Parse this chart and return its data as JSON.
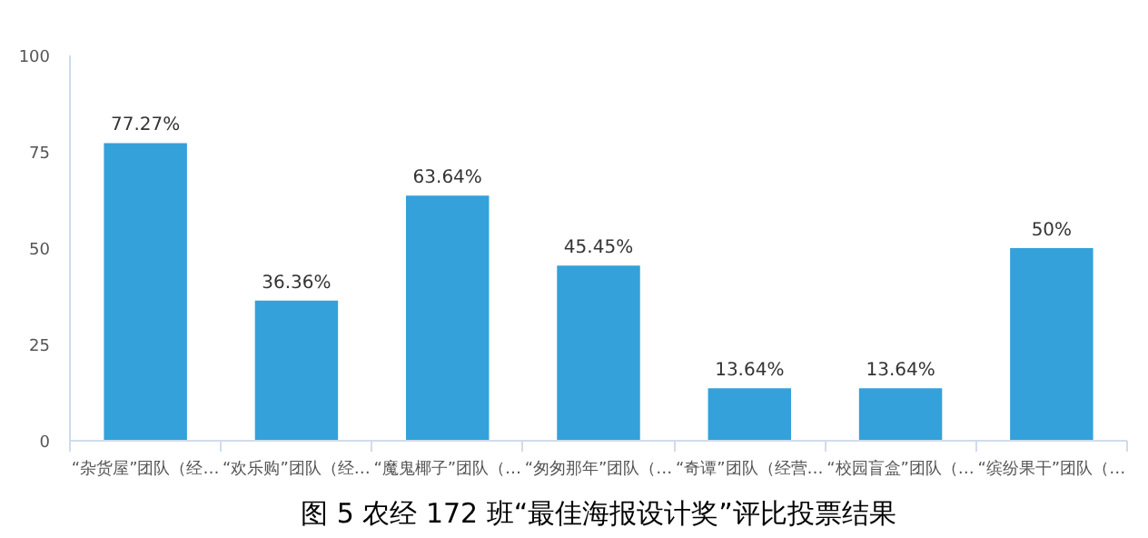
{
  "chart_data": {
    "type": "bar",
    "title": "图 5 农经 172 班“最佳海报设计奖”评比投票结果",
    "categories": [
      "“杂货屋”团队（经…",
      "“欢乐购”团队（经…",
      "“魔鬼椰子”团队（…",
      "“匆匆那年”团队（…",
      "“奇谭”团队（经营…",
      "“校园盲盒”团队（…",
      "“缤纷果干”团队（…"
    ],
    "values": [
      77.27,
      36.36,
      63.64,
      45.45,
      13.64,
      13.64,
      50
    ],
    "value_labels": [
      "77.27%",
      "36.36%",
      "63.64%",
      "45.45%",
      "13.64%",
      "13.64%",
      "50%"
    ],
    "color": "#34a1da",
    "ylim": [
      0,
      100
    ],
    "yticks": [
      0,
      25,
      50,
      75,
      100
    ],
    "grid": false
  }
}
